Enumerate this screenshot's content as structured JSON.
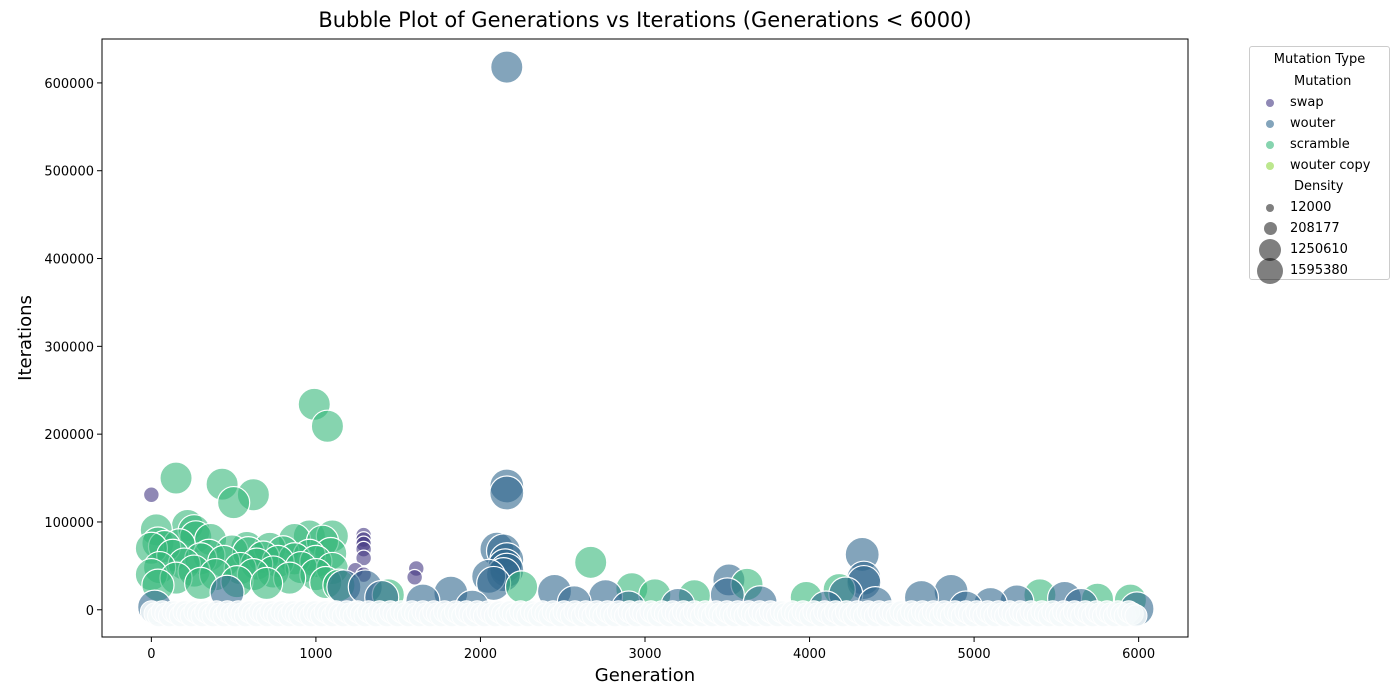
{
  "chart_data": {
    "type": "scatter",
    "title": "Bubble Plot of Generations vs Iterations (Generations < 6000)",
    "xlabel": "Generation",
    "ylabel": "Iterations",
    "xlim": [
      -300,
      6300
    ],
    "ylim": [
      -31000,
      650000
    ],
    "xticks": [
      0,
      1000,
      2000,
      3000,
      4000,
      5000,
      6000
    ],
    "yticks": [
      0,
      100000,
      200000,
      300000,
      400000,
      500000,
      600000
    ],
    "legend_title": "Mutation Type",
    "legend_hue_title": "Mutation",
    "legend_size_title": "Density",
    "legend_placement": "outside-top-right",
    "grid": false,
    "series": [
      {
        "name": "swap",
        "color": "#443983"
      },
      {
        "name": "wouter",
        "color": "#31688e"
      },
      {
        "name": "scramble",
        "color": "#35b779"
      },
      {
        "name": "wouter copy",
        "color": "#90d743"
      }
    ],
    "size_legend": [
      {
        "label": "12000",
        "density": 12000
      },
      {
        "label": "208177",
        "density": 208177
      },
      {
        "label": "1250610",
        "density": 1250610
      },
      {
        "label": "1595380",
        "density": 1595380
      }
    ],
    "points": [
      {
        "x": 2160,
        "y": 618000,
        "series": "wouter",
        "density": 1250610
      },
      {
        "x": 990,
        "y": 234000,
        "series": "scramble",
        "density": 1250610
      },
      {
        "x": 1070,
        "y": 209000,
        "series": "scramble",
        "density": 1250610
      },
      {
        "x": 150,
        "y": 150000,
        "series": "scramble",
        "density": 1250610
      },
      {
        "x": 430,
        "y": 143000,
        "series": "scramble",
        "density": 1250610
      },
      {
        "x": 2160,
        "y": 141000,
        "series": "wouter",
        "density": 1595380
      },
      {
        "x": 2160,
        "y": 133000,
        "series": "wouter",
        "density": 1595380
      },
      {
        "x": 0,
        "y": 131000,
        "series": "swap",
        "density": 208177
      },
      {
        "x": 620,
        "y": 131000,
        "series": "scramble",
        "density": 1250610
      },
      {
        "x": 500,
        "y": 122000,
        "series": "scramble",
        "density": 1250610
      },
      {
        "x": 220,
        "y": 96000,
        "series": "scramble",
        "density": 1250610
      },
      {
        "x": 30,
        "y": 91000,
        "series": "scramble",
        "density": 1250610
      },
      {
        "x": 260,
        "y": 90000,
        "series": "scramble",
        "density": 1250610
      },
      {
        "x": 960,
        "y": 84000,
        "series": "scramble",
        "density": 1250610
      },
      {
        "x": 1100,
        "y": 84000,
        "series": "scramble",
        "density": 1250610
      },
      {
        "x": 270,
        "y": 83000,
        "series": "scramble",
        "density": 1250610
      },
      {
        "x": 1290,
        "y": 85000,
        "series": "swap",
        "density": 208177
      },
      {
        "x": 1290,
        "y": 80000,
        "series": "swap",
        "density": 208177
      },
      {
        "x": 1290,
        "y": 75000,
        "series": "swap",
        "density": 208177
      },
      {
        "x": 1290,
        "y": 69000,
        "series": "swap",
        "density": 208177
      },
      {
        "x": 1290,
        "y": 59000,
        "series": "swap",
        "density": 208177
      },
      {
        "x": 360,
        "y": 80000,
        "series": "scramble",
        "density": 1250610
      },
      {
        "x": 870,
        "y": 80000,
        "series": "scramble",
        "density": 1250610
      },
      {
        "x": 1040,
        "y": 78000,
        "series": "scramble",
        "density": 1250610
      },
      {
        "x": 40,
        "y": 76000,
        "series": "scramble",
        "density": 1250610
      },
      {
        "x": 170,
        "y": 74000,
        "series": "scramble",
        "density": 1250610
      },
      {
        "x": 80,
        "y": 72000,
        "series": "scramble",
        "density": 1250610
      },
      {
        "x": 0,
        "y": 70000,
        "series": "scramble",
        "density": 1250610
      },
      {
        "x": 580,
        "y": 71000,
        "series": "scramble",
        "density": 1250610
      },
      {
        "x": 720,
        "y": 70000,
        "series": "scramble",
        "density": 1250610
      },
      {
        "x": 2100,
        "y": 69000,
        "series": "wouter",
        "density": 1595380
      },
      {
        "x": 2140,
        "y": 67000,
        "series": "wouter",
        "density": 1595380
      },
      {
        "x": 490,
        "y": 67000,
        "series": "scramble",
        "density": 1250610
      },
      {
        "x": 800,
        "y": 66000,
        "series": "scramble",
        "density": 1250610
      },
      {
        "x": 590,
        "y": 65000,
        "series": "scramble",
        "density": 1250610
      },
      {
        "x": 1090,
        "y": 64000,
        "series": "scramble",
        "density": 1250610
      },
      {
        "x": 4320,
        "y": 63000,
        "series": "wouter",
        "density": 1595380
      },
      {
        "x": 130,
        "y": 62000,
        "series": "scramble",
        "density": 1250610
      },
      {
        "x": 350,
        "y": 62000,
        "series": "scramble",
        "density": 1250610
      },
      {
        "x": 960,
        "y": 62000,
        "series": "scramble",
        "density": 1250610
      },
      {
        "x": 680,
        "y": 60000,
        "series": "scramble",
        "density": 1250610
      },
      {
        "x": 300,
        "y": 58000,
        "series": "scramble",
        "density": 1250610
      },
      {
        "x": 870,
        "y": 58000,
        "series": "scramble",
        "density": 1250610
      },
      {
        "x": 2160,
        "y": 57000,
        "series": "wouter",
        "density": 1595380
      },
      {
        "x": 2670,
        "y": 54000,
        "series": "scramble",
        "density": 1250610
      },
      {
        "x": 440,
        "y": 55000,
        "series": "scramble",
        "density": 1250610
      },
      {
        "x": 770,
        "y": 55000,
        "series": "scramble",
        "density": 1250610
      },
      {
        "x": 1000,
        "y": 55000,
        "series": "scramble",
        "density": 1250610
      },
      {
        "x": 200,
        "y": 52000,
        "series": "scramble",
        "density": 1250610
      },
      {
        "x": 640,
        "y": 52000,
        "series": "scramble",
        "density": 1250610
      },
      {
        "x": 2150,
        "y": 50000,
        "series": "wouter",
        "density": 1595380
      },
      {
        "x": 1610,
        "y": 47000,
        "series": "swap",
        "density": 208177
      },
      {
        "x": 50,
        "y": 48000,
        "series": "scramble",
        "density": 1250610
      },
      {
        "x": 540,
        "y": 47000,
        "series": "scramble",
        "density": 1250610
      },
      {
        "x": 910,
        "y": 48000,
        "series": "scramble",
        "density": 1250610
      },
      {
        "x": 1100,
        "y": 47000,
        "series": "scramble",
        "density": 1250610
      },
      {
        "x": 1240,
        "y": 45000,
        "series": "swap",
        "density": 208177
      },
      {
        "x": 2160,
        "y": 45000,
        "series": "wouter",
        "density": 1595380
      },
      {
        "x": 260,
        "y": 44000,
        "series": "scramble",
        "density": 1250610
      },
      {
        "x": 740,
        "y": 43000,
        "series": "scramble",
        "density": 1250610
      },
      {
        "x": 2140,
        "y": 40000,
        "series": "wouter",
        "density": 1595380
      },
      {
        "x": 2050,
        "y": 38000,
        "series": "wouter",
        "density": 1595380
      },
      {
        "x": 0,
        "y": 40000,
        "series": "scramble",
        "density": 1250610
      },
      {
        "x": 390,
        "y": 40000,
        "series": "scramble",
        "density": 1250610
      },
      {
        "x": 620,
        "y": 40000,
        "series": "scramble",
        "density": 1250610
      },
      {
        "x": 1000,
        "y": 40000,
        "series": "scramble",
        "density": 1250610
      },
      {
        "x": 1290,
        "y": 40000,
        "series": "swap",
        "density": 208177
      },
      {
        "x": 1600,
        "y": 37000,
        "series": "swap",
        "density": 208177
      },
      {
        "x": 4330,
        "y": 36000,
        "series": "wouter",
        "density": 1595380
      },
      {
        "x": 150,
        "y": 36000,
        "series": "scramble",
        "density": 1250610
      },
      {
        "x": 840,
        "y": 36000,
        "series": "scramble",
        "density": 1250610
      },
      {
        "x": 3510,
        "y": 34000,
        "series": "wouter",
        "density": 1250610
      },
      {
        "x": 4330,
        "y": 31000,
        "series": "wouter",
        "density": 1595380
      },
      {
        "x": 2080,
        "y": 30000,
        "series": "wouter",
        "density": 1595380
      },
      {
        "x": 520,
        "y": 32000,
        "series": "scramble",
        "density": 1250610
      },
      {
        "x": 1060,
        "y": 31000,
        "series": "scramble",
        "density": 1250610
      },
      {
        "x": 300,
        "y": 30000,
        "series": "scramble",
        "density": 1250610
      },
      {
        "x": 700,
        "y": 30000,
        "series": "scramble",
        "density": 1250610
      },
      {
        "x": 3620,
        "y": 29000,
        "series": "scramble",
        "density": 1250610
      },
      {
        "x": 40,
        "y": 28000,
        "series": "scramble",
        "density": 1250610
      },
      {
        "x": 1140,
        "y": 28000,
        "series": "scramble",
        "density": 1250610
      },
      {
        "x": 1170,
        "y": 26000,
        "series": "wouter",
        "density": 1595380
      },
      {
        "x": 1300,
        "y": 26000,
        "series": "wouter",
        "density": 1595380
      },
      {
        "x": 2250,
        "y": 26000,
        "series": "scramble",
        "density": 1250610
      },
      {
        "x": 2920,
        "y": 24000,
        "series": "scramble",
        "density": 1250610
      },
      {
        "x": 4180,
        "y": 23000,
        "series": "scramble",
        "density": 1250610
      },
      {
        "x": 2450,
        "y": 21000,
        "series": "wouter",
        "density": 1595380
      },
      {
        "x": 4860,
        "y": 21000,
        "series": "wouter",
        "density": 1595380
      },
      {
        "x": 460,
        "y": 20000,
        "series": "wouter",
        "density": 1595380
      },
      {
        "x": 1820,
        "y": 19000,
        "series": "wouter",
        "density": 1595380
      },
      {
        "x": 4220,
        "y": 18000,
        "series": "wouter",
        "density": 1595380
      },
      {
        "x": 3500,
        "y": 17000,
        "series": "wouter",
        "density": 1595380
      },
      {
        "x": 5400,
        "y": 17000,
        "series": "scramble",
        "density": 1250610
      },
      {
        "x": 3060,
        "y": 17000,
        "series": "scramble",
        "density": 1250610
      },
      {
        "x": 1440,
        "y": 17000,
        "series": "scramble",
        "density": 1250610
      },
      {
        "x": 3300,
        "y": 16000,
        "series": "scramble",
        "density": 1250610
      },
      {
        "x": 2760,
        "y": 15000,
        "series": "wouter",
        "density": 1595380
      },
      {
        "x": 1400,
        "y": 14000,
        "series": "wouter",
        "density": 1595380
      },
      {
        "x": 3980,
        "y": 14000,
        "series": "scramble",
        "density": 1250610
      },
      {
        "x": 4680,
        "y": 14000,
        "series": "wouter",
        "density": 1595380
      },
      {
        "x": 5550,
        "y": 13000,
        "series": "wouter",
        "density": 1595380
      },
      {
        "x": 5750,
        "y": 12000,
        "series": "scramble",
        "density": 1250610
      },
      {
        "x": 5950,
        "y": 11000,
        "series": "scramble",
        "density": 1250610
      },
      {
        "x": 1650,
        "y": 10000,
        "series": "wouter",
        "density": 1595380
      },
      {
        "x": 5260,
        "y": 9000,
        "series": "wouter",
        "density": 1595380
      },
      {
        "x": 2570,
        "y": 8000,
        "series": "wouter",
        "density": 1595380
      },
      {
        "x": 3700,
        "y": 8000,
        "series": "wouter",
        "density": 1595380
      },
      {
        "x": 4400,
        "y": 7000,
        "series": "wouter",
        "density": 1595380
      },
      {
        "x": 5100,
        "y": 6000,
        "series": "wouter",
        "density": 1595380
      },
      {
        "x": 3200,
        "y": 5000,
        "series": "wouter",
        "density": 1595380
      },
      {
        "x": 5650,
        "y": 5000,
        "series": "wouter",
        "density": 1595380
      },
      {
        "x": 20,
        "y": 3000,
        "series": "wouter",
        "density": 1595380
      },
      {
        "x": 5990,
        "y": 1000,
        "series": "wouter",
        "density": 1595380
      },
      {
        "x": 1950,
        "y": 3000,
        "series": "wouter",
        "density": 1595380
      },
      {
        "x": 2900,
        "y": 2000,
        "series": "wouter",
        "density": 1595380
      },
      {
        "x": 4100,
        "y": 2000,
        "series": "wouter",
        "density": 1595380
      },
      {
        "x": 4950,
        "y": 2000,
        "series": "wouter",
        "density": 1595380
      }
    ]
  }
}
